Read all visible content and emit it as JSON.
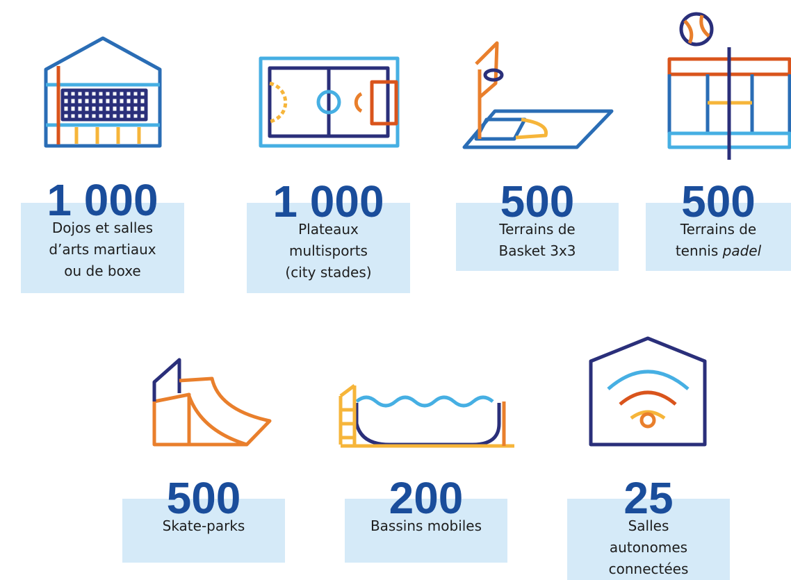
{
  "items": [
    {
      "number": "1 000",
      "lines": [
        "Dojos et salles",
        "d’arts martiaux",
        "ou de boxe"
      ]
    },
    {
      "number": "1 000",
      "lines": [
        "Plateaux",
        "multisports",
        "(city stades)"
      ]
    },
    {
      "number": "500",
      "lines": [
        "Terrains de",
        "Basket 3x3"
      ]
    },
    {
      "number": "500",
      "lines": [
        "Terrains de",
        "tennis"
      ],
      "italic": "padel"
    },
    {
      "number": "500",
      "lines": [
        "Skate-parks"
      ]
    },
    {
      "number": "200",
      "lines": [
        "Bassins mobiles"
      ]
    },
    {
      "number": "25",
      "lines": [
        "Salles",
        "autonomes",
        "connectées"
      ]
    }
  ]
}
